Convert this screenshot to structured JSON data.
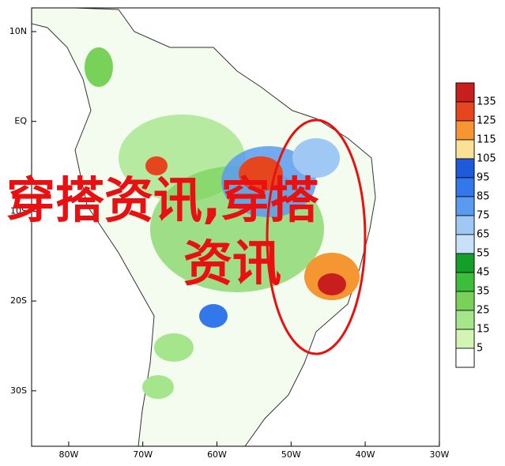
{
  "map": {
    "lat_labels": [
      "10N",
      "EQ",
      "10S",
      "20S",
      "30S"
    ],
    "lat_values": [
      10,
      0,
      -10,
      -20,
      -30
    ],
    "lon_labels": [
      "80W",
      "70W",
      "60W",
      "50W",
      "40W",
      "30W"
    ],
    "lon_values": [
      -80,
      -70,
      -60,
      -50,
      -40,
      -30
    ],
    "colorbar": {
      "levels": [
        135,
        125,
        115,
        105,
        95,
        85,
        75,
        65,
        55,
        45,
        35,
        25,
        15,
        5
      ],
      "colors": [
        "#c81e1e",
        "#e6461e",
        "#f59632",
        "#fae196",
        "#1e5adc",
        "#3278eb",
        "#5a9bf0",
        "#a0c8f5",
        "#c8e1fa",
        "#14a028",
        "#3cbe3c",
        "#78d25a",
        "#a5e68c",
        "#d2f5b4",
        "#ffffff"
      ]
    },
    "watermark": [
      "穿搭资讯,穿搭",
      "资讯"
    ]
  }
}
